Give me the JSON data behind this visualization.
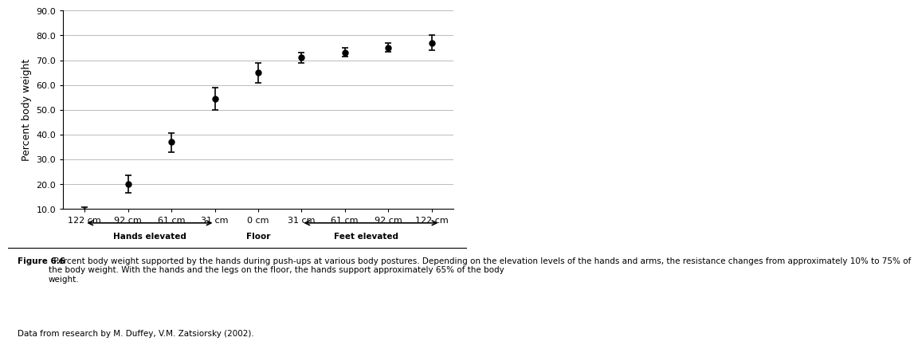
{
  "x_positions": [
    0,
    1,
    2,
    3,
    4,
    5,
    6,
    7,
    8
  ],
  "x_labels": [
    "122 cm",
    "92 cm",
    "61 cm",
    "31 cm",
    "0 cm",
    "31 cm",
    "61 cm",
    "92 cm",
    "122 cm"
  ],
  "y_values": [
    9,
    20,
    37,
    54.5,
    65,
    71,
    73,
    75,
    77
  ],
  "y_err_upper": [
    1.5,
    3.5,
    3.5,
    4.5,
    4,
    2,
    2,
    2,
    3
  ],
  "y_err_lower": [
    1.5,
    3.5,
    4,
    4.5,
    4,
    2,
    1.5,
    1.5,
    3
  ],
  "ylim": [
    10,
    90
  ],
  "yticks": [
    10.0,
    20.0,
    30.0,
    40.0,
    50.0,
    60.0,
    70.0,
    80.0,
    90.0
  ],
  "ylabel": "Percent body weight",
  "hands_elevated_label": "Hands elevated",
  "floor_label": "Floor",
  "feet_elevated_label": "Feet elevated",
  "figure_caption_bold": "Figure 6.6",
  "figure_caption_rest": "  Percent body weight supported by the hands during push-ups at various body postures. Depending on the elevation levels of the hands and arms, the resistance changes from approximately 10% to 75% of\nthe body weight. With the hands and the legs on the floor, the hands support approximately 65% of the body\nweight.",
  "data_source": "Data from research by M. Duffey, V.M. Zatsiorsky (2002).",
  "marker_color": "black",
  "marker_size": 5,
  "grid_color": "#bbbbbb",
  "background_color": "white"
}
